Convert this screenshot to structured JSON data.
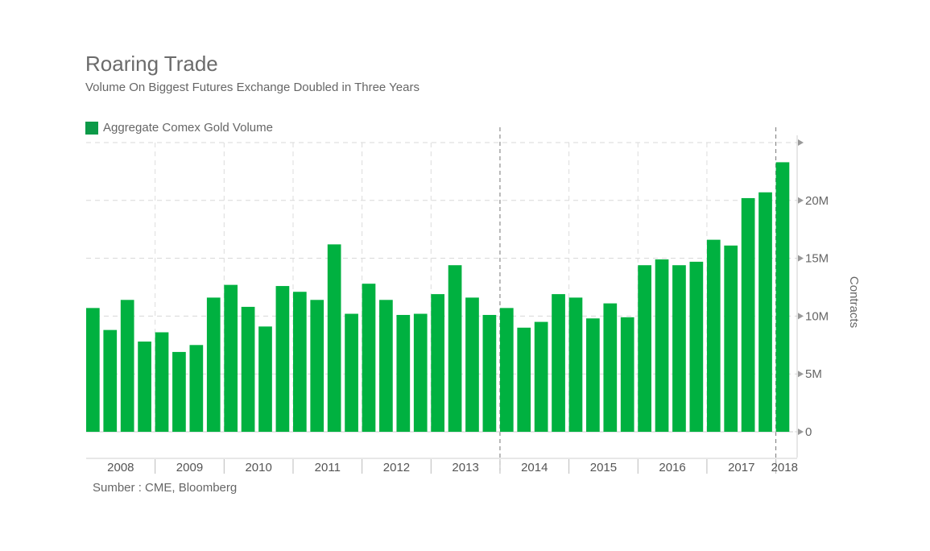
{
  "chart_data": {
    "type": "bar",
    "title": "Roaring Trade",
    "subtitle": "Volume On Biggest Futures Exchange Doubled in Three Years",
    "legend": [
      {
        "name": "Aggregate Comex Gold Volume",
        "color": "#0c9a48"
      }
    ],
    "bar_color": "#00b140",
    "ylabel": "Contracts",
    "ylim": [
      0,
      25000000
    ],
    "y_ticks": [
      {
        "value": 0,
        "label": "0"
      },
      {
        "value": 5000000,
        "label": "5M"
      },
      {
        "value": 10000000,
        "label": "10M"
      },
      {
        "value": 15000000,
        "label": "15M"
      },
      {
        "value": 20000000,
        "label": "20M"
      }
    ],
    "years": [
      "2008",
      "2009",
      "2010",
      "2011",
      "2012",
      "2013",
      "2014",
      "2015",
      "2016",
      "2017",
      "2018"
    ],
    "categories": [
      "2008 Q1",
      "2008 Q2",
      "2008 Q3",
      "2008 Q4",
      "2009 Q1",
      "2009 Q2",
      "2009 Q3",
      "2009 Q4",
      "2010 Q1",
      "2010 Q2",
      "2010 Q3",
      "2010 Q4",
      "2011 Q1",
      "2011 Q2",
      "2011 Q3",
      "2011 Q4",
      "2012 Q1",
      "2012 Q2",
      "2012 Q3",
      "2012 Q4",
      "2013 Q1",
      "2013 Q2",
      "2013 Q3",
      "2013 Q4",
      "2014 Q1",
      "2014 Q2",
      "2014 Q3",
      "2014 Q4",
      "2015 Q1",
      "2015 Q2",
      "2015 Q3",
      "2015 Q4",
      "2016 Q1",
      "2016 Q2",
      "2016 Q3",
      "2016 Q4",
      "2017 Q1",
      "2017 Q2",
      "2017 Q3",
      "2017 Q4",
      "2018 Q1"
    ],
    "values": [
      10700000,
      8800000,
      11400000,
      7800000,
      8600000,
      6900000,
      7500000,
      11600000,
      12700000,
      10800000,
      9100000,
      12600000,
      12100000,
      11400000,
      16200000,
      10200000,
      12800000,
      11400000,
      10100000,
      10200000,
      11900000,
      14400000,
      11600000,
      10100000,
      10700000,
      9000000,
      9500000,
      11900000,
      11600000,
      9800000,
      11100000,
      9900000,
      14400000,
      14900000,
      14400000,
      14700000,
      16600000,
      16100000,
      20200000,
      20700000,
      23300000
    ]
  },
  "source": "Sumber : CME, Bloomberg"
}
